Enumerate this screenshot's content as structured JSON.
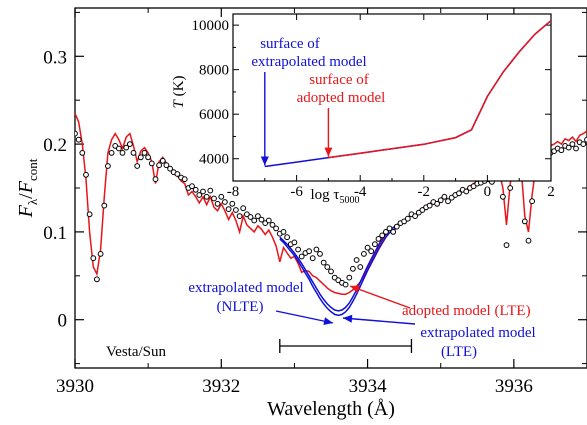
{
  "chart_data": [
    {
      "type": "line",
      "xlabel": "Wavelength (Å)",
      "ylabel_main": "F",
      "ylabel_main_sub": "λ",
      "ylabel_sep": "/",
      "ylabel_den": "F",
      "ylabel_den_sub": "cont",
      "xlim": [
        3930,
        3937
      ],
      "ylim": [
        -0.055,
        0.355
      ],
      "xticks": [
        3930,
        3932,
        3934,
        3936
      ],
      "yticks": [
        0,
        0.1,
        0.2,
        0.3
      ],
      "xtick_labels": [
        "3930",
        "3932",
        "3934",
        "3936"
      ],
      "ytick_labels": [
        "0",
        "0.1",
        "0.2",
        "0.3"
      ],
      "series": [
        {
          "role": "observed",
          "color": "#000000",
          "style": "open-circles",
          "x": [
            3930.0,
            3930.05,
            3930.1,
            3930.15,
            3930.2,
            3930.25,
            3930.3,
            3930.35,
            3930.4,
            3930.45,
            3930.5,
            3930.55,
            3930.6,
            3930.65,
            3930.7,
            3930.75,
            3930.8,
            3930.85,
            3930.9,
            3930.95,
            3931.0,
            3931.05,
            3931.1,
            3931.15,
            3931.2,
            3931.25,
            3931.3,
            3931.35,
            3931.4,
            3931.45,
            3931.5,
            3931.55,
            3931.6,
            3931.65,
            3931.7,
            3931.75,
            3931.8,
            3931.85,
            3931.9,
            3931.95,
            3932.0,
            3932.05,
            3932.1,
            3932.15,
            3932.2,
            3932.25,
            3932.3,
            3932.35,
            3932.4,
            3932.45,
            3932.5,
            3932.55,
            3932.6,
            3932.65,
            3932.7,
            3932.75,
            3932.8,
            3932.85,
            3932.9,
            3932.95,
            3933.0,
            3933.05,
            3933.1,
            3933.15,
            3933.2,
            3933.25,
            3933.3,
            3933.35,
            3933.4,
            3933.45,
            3933.5,
            3933.55,
            3933.6,
            3933.65,
            3933.7,
            3933.75,
            3933.8,
            3933.85,
            3933.9,
            3933.95,
            3934.0,
            3934.05,
            3934.1,
            3934.15,
            3934.2,
            3934.25,
            3934.3,
            3934.35,
            3934.4,
            3934.45,
            3934.5,
            3934.55,
            3934.6,
            3934.65,
            3934.7,
            3934.75,
            3934.8,
            3934.85,
            3934.9,
            3934.95,
            3935.0,
            3935.05,
            3935.1,
            3935.15,
            3935.2,
            3935.25,
            3935.3,
            3935.35,
            3935.4,
            3935.45,
            3935.5,
            3935.55,
            3935.6,
            3935.65,
            3935.7,
            3935.75,
            3935.8,
            3935.85,
            3935.9,
            3935.95,
            3936.0,
            3936.05,
            3936.1,
            3936.15,
            3936.2,
            3936.25,
            3936.3,
            3936.35,
            3936.4,
            3936.45,
            3936.5,
            3936.55,
            3936.6,
            3936.65,
            3936.7,
            3936.75,
            3936.8,
            3936.85,
            3936.9,
            3936.95,
            3937.0
          ],
          "y": [
            0.212,
            0.205,
            0.19,
            0.165,
            0.12,
            0.07,
            0.046,
            0.075,
            0.13,
            0.175,
            0.19,
            0.198,
            0.195,
            0.19,
            0.196,
            0.2,
            0.19,
            0.175,
            0.185,
            0.19,
            0.185,
            0.178,
            0.16,
            0.176,
            0.181,
            0.176,
            0.172,
            0.168,
            0.166,
            0.162,
            0.16,
            0.15,
            0.152,
            0.148,
            0.142,
            0.146,
            0.14,
            0.147,
            0.138,
            0.132,
            0.14,
            0.134,
            0.126,
            0.132,
            0.125,
            0.118,
            0.127,
            0.12,
            0.117,
            0.113,
            0.118,
            0.114,
            0.11,
            0.113,
            0.108,
            0.104,
            0.098,
            0.1,
            0.094,
            0.086,
            0.088,
            0.08,
            0.072,
            0.076,
            0.078,
            0.07,
            0.08,
            0.075,
            0.065,
            0.06,
            0.055,
            0.048,
            0.045,
            0.042,
            0.04,
            0.048,
            0.058,
            0.068,
            0.06,
            0.075,
            0.082,
            0.078,
            0.086,
            0.092,
            0.096,
            0.1,
            0.104,
            0.1,
            0.106,
            0.11,
            0.112,
            0.115,
            0.12,
            0.118,
            0.122,
            0.125,
            0.128,
            0.13,
            0.134,
            0.132,
            0.136,
            0.14,
            0.135,
            0.139,
            0.142,
            0.144,
            0.148,
            0.146,
            0.15,
            0.152,
            0.155,
            0.156,
            0.158,
            0.16,
            0.157,
            0.162,
            0.165,
            0.14,
            0.085,
            0.15,
            0.168,
            0.17,
            0.17,
            0.112,
            0.09,
            0.135,
            0.168,
            0.175,
            0.186,
            0.185,
            0.19,
            0.192,
            0.195,
            0.193,
            0.198,
            0.196,
            0.2,
            0.195,
            0.202,
            0.2,
            0.205
          ]
        },
        {
          "role": "adopted model (LTE)",
          "color": "#e8161b",
          "style": "line",
          "x": [
            3930.0,
            3930.05,
            3930.1,
            3930.15,
            3930.2,
            3930.25,
            3930.3,
            3930.35,
            3930.4,
            3930.45,
            3930.5,
            3930.55,
            3930.6,
            3930.65,
            3930.7,
            3930.75,
            3930.8,
            3930.85,
            3930.9,
            3930.95,
            3931.0,
            3931.05,
            3931.1,
            3931.15,
            3931.2,
            3931.25,
            3931.3,
            3931.35,
            3931.4,
            3931.45,
            3931.5,
            3931.55,
            3931.6,
            3931.65,
            3931.7,
            3931.75,
            3931.8,
            3931.85,
            3931.9,
            3931.95,
            3932.0,
            3932.05,
            3932.1,
            3932.15,
            3932.2,
            3932.25,
            3932.3,
            3932.35,
            3932.4,
            3932.45,
            3932.5,
            3932.55,
            3932.6,
            3932.65,
            3932.7,
            3932.75,
            3932.8,
            3932.85,
            3932.9,
            3932.95,
            3933.0,
            3933.05,
            3933.1,
            3933.15,
            3933.2,
            3933.25,
            3933.3,
            3933.35,
            3933.4,
            3933.45,
            3933.5,
            3933.55,
            3933.6,
            3933.65,
            3933.7,
            3933.75,
            3933.8,
            3933.85,
            3933.9,
            3933.95,
            3934.0,
            3934.05,
            3934.1,
            3934.15,
            3934.2,
            3934.25,
            3934.3,
            3934.35,
            3934.4,
            3934.45,
            3934.5,
            3934.55,
            3934.6,
            3934.65,
            3934.7,
            3934.75,
            3934.8,
            3934.85,
            3934.9,
            3934.95,
            3935.0,
            3935.05,
            3935.1,
            3935.15,
            3935.2,
            3935.25,
            3935.3,
            3935.35,
            3935.4,
            3935.45,
            3935.5,
            3935.55,
            3935.6,
            3935.65,
            3935.7,
            3935.75,
            3935.8,
            3935.85,
            3935.9,
            3935.95,
            3936.0,
            3936.05,
            3936.1,
            3936.15,
            3936.2,
            3936.25,
            3936.3,
            3936.35,
            3936.4,
            3936.45,
            3936.5,
            3936.55,
            3936.6,
            3936.65,
            3936.7,
            3936.75,
            3936.8,
            3936.85,
            3936.9,
            3936.95,
            3937.0
          ],
          "y": [
            0.235,
            0.225,
            0.2,
            0.16,
            0.1,
            0.06,
            0.052,
            0.08,
            0.14,
            0.19,
            0.205,
            0.212,
            0.205,
            0.195,
            0.208,
            0.212,
            0.198,
            0.18,
            0.192,
            0.196,
            0.19,
            0.18,
            0.155,
            0.18,
            0.185,
            0.178,
            0.172,
            0.166,
            0.164,
            0.158,
            0.155,
            0.142,
            0.146,
            0.14,
            0.133,
            0.14,
            0.131,
            0.14,
            0.128,
            0.124,
            0.132,
            0.124,
            0.114,
            0.122,
            0.113,
            0.1,
            0.118,
            0.108,
            0.104,
            0.1,
            0.107,
            0.103,
            0.097,
            0.102,
            0.094,
            0.084,
            0.066,
            0.082,
            0.076,
            0.07,
            0.072,
            0.064,
            0.054,
            0.056,
            0.055,
            0.05,
            0.048,
            0.044,
            0.04,
            0.036,
            0.033,
            0.031,
            0.03,
            0.029,
            0.029,
            0.031,
            0.034,
            0.038,
            0.043,
            0.05,
            0.058,
            0.066,
            0.074,
            0.082,
            0.09,
            0.097,
            0.103,
            0.099,
            0.106,
            0.11,
            0.113,
            0.116,
            0.121,
            0.119,
            0.124,
            0.127,
            0.13,
            0.132,
            0.136,
            0.133,
            0.138,
            0.142,
            0.136,
            0.141,
            0.144,
            0.146,
            0.15,
            0.148,
            0.152,
            0.155,
            0.158,
            0.16,
            0.162,
            0.165,
            0.16,
            0.164,
            0.168,
            0.15,
            0.108,
            0.155,
            0.172,
            0.178,
            0.172,
            0.118,
            0.1,
            0.142,
            0.174,
            0.182,
            0.195,
            0.193,
            0.198,
            0.2,
            0.203,
            0.2,
            0.206,
            0.204,
            0.208,
            0.203,
            0.21,
            0.212,
            0.215
          ]
        },
        {
          "role": "extrapolated model (LTE)",
          "color": "#1010d8",
          "style": "line",
          "x": [
            3932.8,
            3932.85,
            3932.9,
            3932.95,
            3933.0,
            3933.05,
            3933.1,
            3933.15,
            3933.2,
            3933.25,
            3933.3,
            3933.35,
            3933.4,
            3933.45,
            3933.5,
            3933.55,
            3933.6,
            3933.65,
            3933.7,
            3933.75,
            3933.8,
            3933.85,
            3933.9,
            3933.95,
            3934.0,
            3934.05,
            3934.1,
            3934.15,
            3934.2,
            3934.25,
            3934.3,
            3934.35,
            3934.4,
            3934.45,
            3934.5
          ],
          "y": [
            0.092,
            0.088,
            0.083,
            0.078,
            0.073,
            0.067,
            0.06,
            0.053,
            0.046,
            0.038,
            0.031,
            0.024,
            0.018,
            0.013,
            0.009,
            0.006,
            0.005,
            0.006,
            0.009,
            0.014,
            0.021,
            0.029,
            0.038,
            0.047,
            0.056,
            0.064,
            0.072,
            0.08,
            0.087,
            0.094,
            0.099,
            0.102,
            0.106,
            0.11,
            0.112
          ]
        },
        {
          "role": "extrapolated model (NLTE)",
          "color": "#1010d8",
          "style": "line",
          "x": [
            3932.8,
            3932.85,
            3932.9,
            3932.95,
            3933.0,
            3933.05,
            3933.1,
            3933.15,
            3933.2,
            3933.25,
            3933.3,
            3933.35,
            3933.4,
            3933.45,
            3933.5,
            3933.55,
            3933.6,
            3933.65,
            3933.7,
            3933.75,
            3933.8,
            3933.85,
            3933.9,
            3933.95,
            3934.0,
            3934.05,
            3934.1,
            3934.15,
            3934.2,
            3934.25,
            3934.3,
            3934.35,
            3934.4,
            3934.45,
            3934.5
          ],
          "y": [
            0.094,
            0.09,
            0.086,
            0.081,
            0.076,
            0.07,
            0.064,
            0.057,
            0.05,
            0.043,
            0.036,
            0.029,
            0.023,
            0.018,
            0.014,
            0.011,
            0.01,
            0.011,
            0.014,
            0.019,
            0.026,
            0.034,
            0.043,
            0.052,
            0.061,
            0.069,
            0.077,
            0.085,
            0.092,
            0.098,
            0.102,
            0.105,
            0.108,
            0.111,
            0.113
          ]
        }
      ],
      "annotations": {
        "vesta": "Vesta/Sun",
        "extrap_nlte_line1": "extrapolated model",
        "extrap_nlte_line2": "(NLTE)",
        "adopted": "adopted model (LTE)",
        "extrap_lte_line1": "extrapolated model",
        "extrap_lte_line2": "(LTE)"
      },
      "bracket_range": [
        3932.8,
        3934.6
      ]
    },
    {
      "type": "line",
      "xlabel": "log τ5000",
      "xlabel_prefix": "log τ",
      "xlabel_sub": "5000",
      "ylabel": "T (K)",
      "ylabel_T": "T",
      "ylabel_unit": " (K)",
      "xlim": [
        -8,
        2
      ],
      "ylim": [
        3000,
        10500
      ],
      "xticks": [
        -8,
        -6,
        -4,
        -2,
        0,
        2
      ],
      "yticks": [
        4000,
        6000,
        8000,
        10000
      ],
      "xtick_labels": [
        "-8",
        "-6",
        "-4",
        "-2",
        "0",
        "2"
      ],
      "ytick_labels": [
        "4000",
        "6000",
        "8000",
        "10000"
      ],
      "series": [
        {
          "role": "extrapolated model",
          "color": "#1010d8",
          "x": [
            -7,
            -6,
            -5,
            -4,
            -3,
            -2,
            -1,
            -0.5,
            0,
            0.5,
            1,
            1.5,
            2
          ],
          "y": [
            3650,
            3850,
            4050,
            4250,
            4450,
            4650,
            4950,
            5300,
            6800,
            7900,
            8800,
            9600,
            10200
          ]
        },
        {
          "role": "adopted model",
          "color": "#e8161b",
          "x": [
            -5,
            -4,
            -3,
            -2,
            -1,
            -0.5,
            0,
            0.5,
            1,
            1.5,
            2
          ],
          "y": [
            4050,
            4250,
            4450,
            4650,
            4950,
            5300,
            6800,
            7900,
            8800,
            9600,
            10200
          ]
        }
      ],
      "annotations": {
        "surface_extrap_line1": "surface of",
        "surface_extrap_line2": "extrapolated model",
        "surface_adopted_line1": "surface of",
        "surface_adopted_line2": "adopted model"
      },
      "arrows": [
        {
          "x": -7,
          "y": 3650,
          "color": "#1010d8"
        },
        {
          "x": -5,
          "y": 4050,
          "color": "#e8161b"
        }
      ]
    }
  ]
}
